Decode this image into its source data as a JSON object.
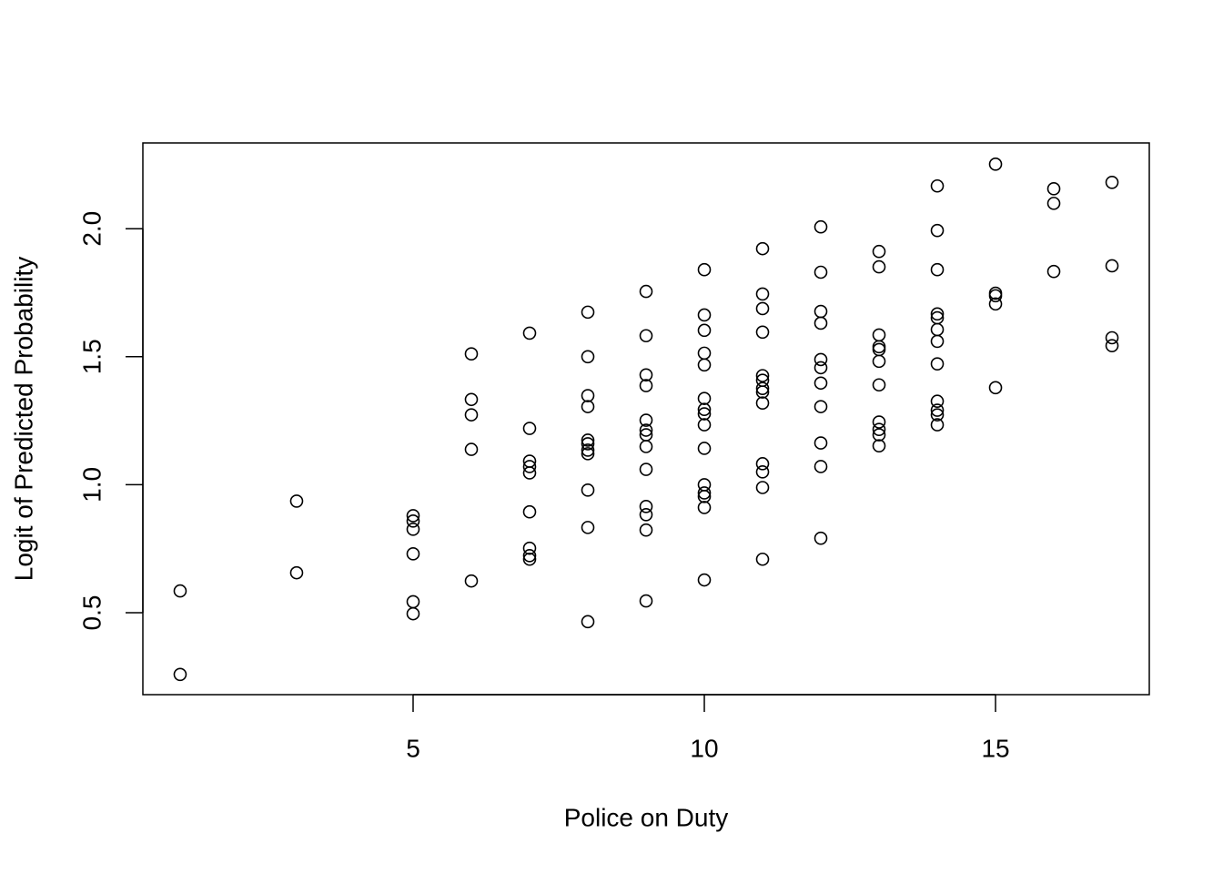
{
  "chart_data": {
    "type": "scatter",
    "x_label": "Police on Duty",
    "y_label": "Logit of Predicted Probability",
    "xlim": [
      0.36,
      17.64
    ],
    "ylim": [
      0.18,
      2.335
    ],
    "xticks": [
      5,
      10,
      15
    ],
    "yticks": [
      0.5,
      1.0,
      1.5,
      2.0
    ],
    "color": "#000000",
    "x": [
      1,
      1,
      3,
      3,
      5,
      5,
      5,
      5,
      5,
      5,
      6,
      6,
      6,
      6,
      6,
      7,
      7,
      7,
      7,
      7,
      7,
      7,
      7,
      7,
      8,
      8,
      8,
      8,
      8,
      8,
      8,
      8,
      8,
      8,
      8,
      9,
      9,
      9,
      9,
      9,
      9,
      9,
      9,
      9,
      9,
      9,
      9,
      9,
      10,
      10,
      10,
      10,
      10,
      10,
      10,
      10,
      10,
      10,
      10,
      10,
      10,
      10,
      10,
      11,
      11,
      11,
      11,
      11,
      11,
      11,
      11,
      11,
      11,
      11,
      11,
      11,
      12,
      12,
      12,
      12,
      12,
      12,
      12,
      12,
      12,
      12,
      12,
      13,
      13,
      13,
      13,
      13,
      13,
      13,
      13,
      13,
      13,
      13,
      14,
      14,
      14,
      14,
      14,
      14,
      14,
      14,
      14,
      14,
      14,
      14,
      15,
      15,
      15,
      15,
      15,
      16,
      16,
      16,
      17,
      17,
      17,
      17
    ],
    "y": [
      0.585,
      0.259,
      0.936,
      0.656,
      0.879,
      0.858,
      0.826,
      0.73,
      0.543,
      0.496,
      1.511,
      1.333,
      1.273,
      1.138,
      0.624,
      1.592,
      1.22,
      1.092,
      1.071,
      1.046,
      0.894,
      0.752,
      0.723,
      0.709,
      1.674,
      1.5,
      1.348,
      1.305,
      1.174,
      1.16,
      1.135,
      1.121,
      0.979,
      0.833,
      0.465,
      1.755,
      1.582,
      1.429,
      1.387,
      1.252,
      1.213,
      1.195,
      1.149,
      1.06,
      0.915,
      0.883,
      0.823,
      0.546,
      1.84,
      1.663,
      1.603,
      1.514,
      1.468,
      1.337,
      1.294,
      1.277,
      1.234,
      1.142,
      1.0,
      0.968,
      0.954,
      0.911,
      0.628,
      1.922,
      1.745,
      1.688,
      1.596,
      1.426,
      1.408,
      1.376,
      1.362,
      1.319,
      1.082,
      1.05,
      0.989,
      0.709,
      2.007,
      1.83,
      1.677,
      1.631,
      1.489,
      1.457,
      1.397,
      1.305,
      1.163,
      1.071,
      0.791,
      1.911,
      1.851,
      1.585,
      1.539,
      1.528,
      1.482,
      1.39,
      1.245,
      1.216,
      1.195,
      1.152,
      2.167,
      1.993,
      1.84,
      1.667,
      1.652,
      1.606,
      1.56,
      1.472,
      1.326,
      1.291,
      1.273,
      1.234,
      2.252,
      1.748,
      1.738,
      1.706,
      1.379,
      2.156,
      2.099,
      1.833,
      2.181,
      1.855,
      1.574,
      1.543
    ]
  }
}
